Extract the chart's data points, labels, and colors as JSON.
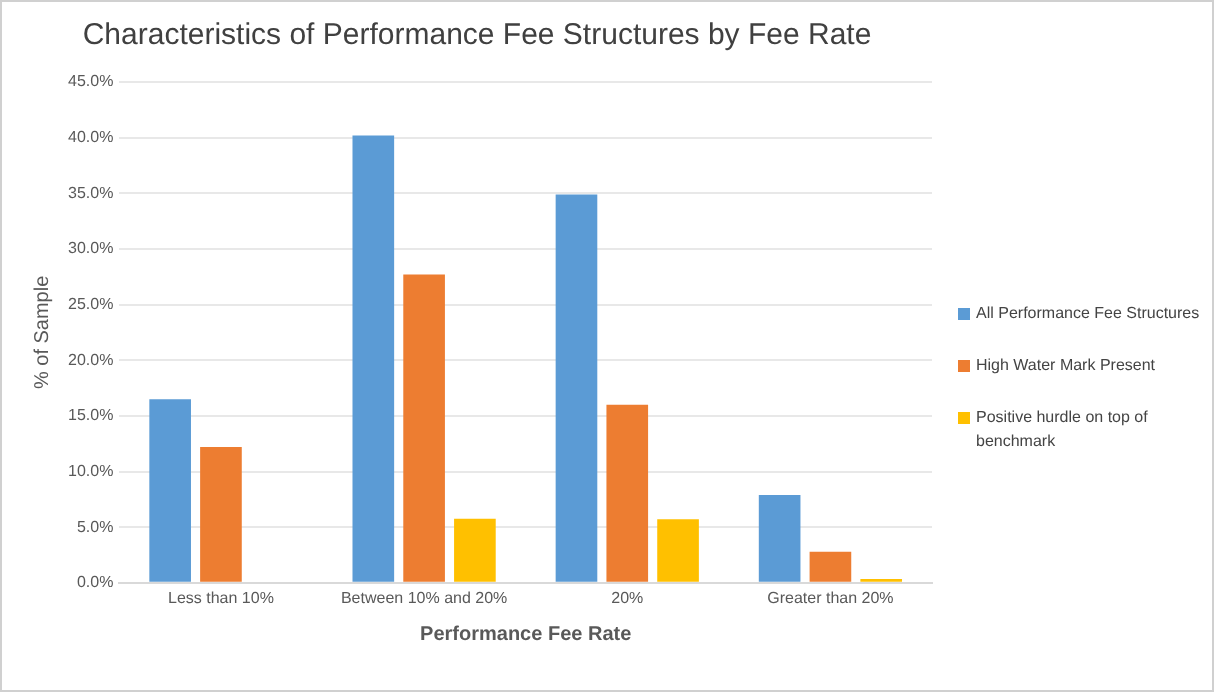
{
  "chart_data": {
    "type": "bar",
    "title": "Characteristics of Performance Fee Structures by Fee Rate",
    "xlabel": "Performance Fee Rate",
    "ylabel": "% of Sample",
    "categories": [
      "Less than 10%",
      "Between 10% and 20%",
      "20%",
      "Greater than 20%"
    ],
    "series": [
      {
        "name": "All Performance Fee Structures",
        "color": "#5b9bd5",
        "values": [
          16.5,
          40.2,
          34.9,
          7.9
        ]
      },
      {
        "name": "High Water Mark Present",
        "color": "#ed7d31",
        "values": [
          12.2,
          27.7,
          16.0,
          2.8
        ]
      },
      {
        "name": "Positive hurdle on top of benchmark",
        "color": "#ffc000",
        "values": [
          null,
          5.75,
          5.7,
          0.35
        ]
      }
    ],
    "ylim": [
      0,
      45
    ],
    "yticks": [
      {
        "value": 0,
        "label": "0.0%"
      },
      {
        "value": 5,
        "label": "5.0%"
      },
      {
        "value": 10,
        "label": "10.0%"
      },
      {
        "value": 15,
        "label": "15.0%"
      },
      {
        "value": 20,
        "label": "20.0%"
      },
      {
        "value": 25,
        "label": "25.0%"
      },
      {
        "value": 30,
        "label": "30.0%"
      },
      {
        "value": 35,
        "label": "35.0%"
      },
      {
        "value": 40,
        "label": "40.0%"
      },
      {
        "value": 45,
        "label": "45.0%"
      }
    ],
    "grid": "y",
    "legend": "right"
  }
}
